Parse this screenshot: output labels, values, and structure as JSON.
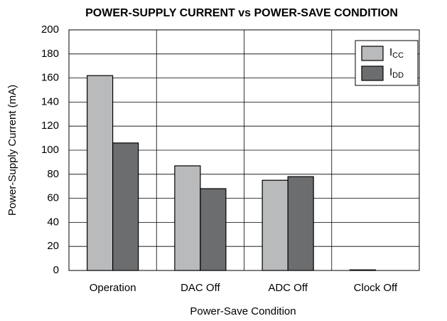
{
  "chart_data": {
    "type": "bar",
    "title": "POWER-SUPPLY CURRENT vs POWER-SAVE CONDITION",
    "x_label": "Power-Save Condition",
    "y_label": "Power-Supply Current (mA)",
    "categories": [
      "Operation",
      "DAC Off",
      "ADC Off",
      "Clock Off"
    ],
    "series": [
      {
        "name": "ICC",
        "color": "#b9babc",
        "values": [
          162,
          87,
          75,
          0.5
        ]
      },
      {
        "name": "IDD",
        "color": "#6c6d6f",
        "values": [
          106,
          68,
          78,
          0
        ]
      }
    ],
    "ylim": [
      0,
      200
    ],
    "yticks": [
      0,
      20,
      40,
      60,
      80,
      100,
      120,
      140,
      160,
      180,
      200
    ],
    "grid": true,
    "legend": "upper right"
  }
}
